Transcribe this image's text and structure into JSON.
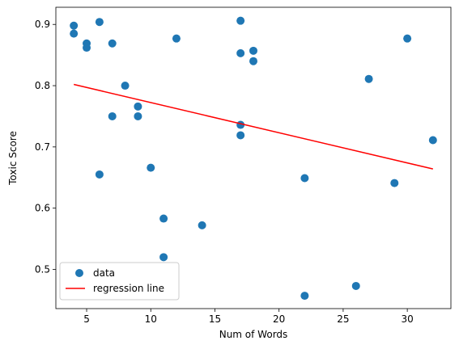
{
  "chart_data": {
    "type": "scatter",
    "title": "",
    "xlabel": "Num of Words",
    "ylabel": "Toxic Score",
    "xlim": [
      2.6,
      33.4
    ],
    "ylim": [
      0.436,
      0.928
    ],
    "xticks": [
      5,
      10,
      15,
      20,
      25,
      30
    ],
    "yticks": [
      0.5,
      0.6,
      0.7,
      0.8,
      0.9
    ],
    "grid": false,
    "legend_position": "lower-left",
    "series": [
      {
        "name": "data",
        "kind": "points",
        "color": "#1f77b4",
        "points": [
          {
            "x": 4,
            "y": 0.898
          },
          {
            "x": 4,
            "y": 0.885
          },
          {
            "x": 5,
            "y": 0.869
          },
          {
            "x": 5,
            "y": 0.862
          },
          {
            "x": 6,
            "y": 0.904
          },
          {
            "x": 6,
            "y": 0.655
          },
          {
            "x": 7,
            "y": 0.869
          },
          {
            "x": 7,
            "y": 0.75
          },
          {
            "x": 8,
            "y": 0.8
          },
          {
            "x": 9,
            "y": 0.766
          },
          {
            "x": 9,
            "y": 0.75
          },
          {
            "x": 10,
            "y": 0.666
          },
          {
            "x": 11,
            "y": 0.583
          },
          {
            "x": 11,
            "y": 0.52
          },
          {
            "x": 12,
            "y": 0.877
          },
          {
            "x": 14,
            "y": 0.572
          },
          {
            "x": 17,
            "y": 0.906
          },
          {
            "x": 17,
            "y": 0.853
          },
          {
            "x": 17,
            "y": 0.736
          },
          {
            "x": 17,
            "y": 0.719
          },
          {
            "x": 18,
            "y": 0.857
          },
          {
            "x": 18,
            "y": 0.84
          },
          {
            "x": 22,
            "y": 0.649
          },
          {
            "x": 22,
            "y": 0.457
          },
          {
            "x": 26,
            "y": 0.473
          },
          {
            "x": 27,
            "y": 0.811
          },
          {
            "x": 29,
            "y": 0.641
          },
          {
            "x": 30,
            "y": 0.877
          },
          {
            "x": 32,
            "y": 0.711
          }
        ]
      },
      {
        "name": "regression line",
        "kind": "line",
        "color": "#ff0000",
        "points": [
          {
            "x": 4,
            "y": 0.802
          },
          {
            "x": 32,
            "y": 0.664
          }
        ]
      }
    ]
  }
}
